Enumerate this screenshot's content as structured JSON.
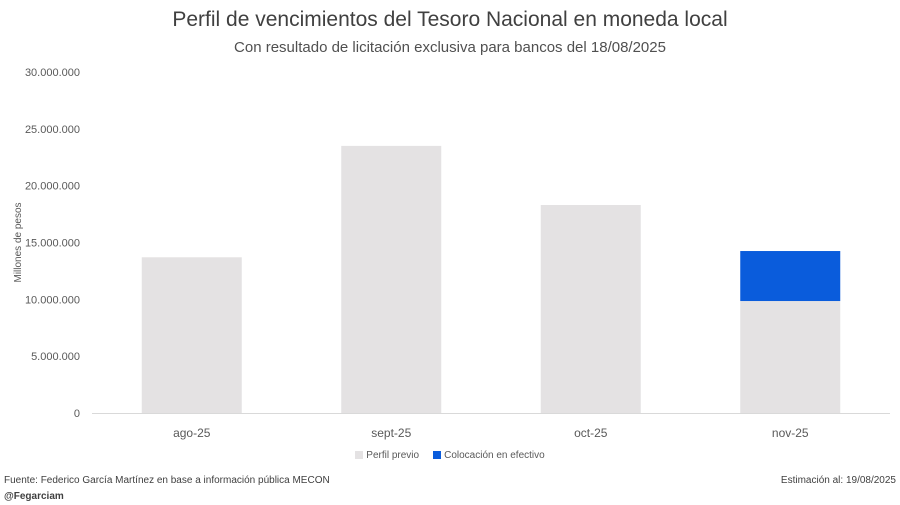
{
  "chart_data": {
    "type": "bar",
    "stacked": true,
    "title": "Perfil de vencimientos del Tesoro Nacional en moneda local",
    "subtitle": "Con resultado de licitación exclusiva para bancos del 18/08/2025",
    "ylabel": "Millones de pesos",
    "xlabel": "",
    "ylim": [
      0,
      30000000
    ],
    "yticks": [
      0,
      5000000,
      10000000,
      15000000,
      20000000,
      25000000,
      30000000
    ],
    "ytick_labels": [
      "0",
      "5.000.000",
      "10.000.000",
      "15.000.000",
      "20.000.000",
      "25.000.000",
      "30.000.000"
    ],
    "categories": [
      "ago-25",
      "sept-25",
      "oct-25",
      "nov-25"
    ],
    "series": [
      {
        "name": "Perfil previo",
        "color": "#e4e2e3",
        "values": [
          13700000,
          23500000,
          18300000,
          9850000
        ]
      },
      {
        "name": "Colocación en efectivo",
        "color": "#0a5cdc",
        "values": [
          0,
          0,
          0,
          4400000
        ]
      }
    ],
    "grid": false,
    "legend": "bottom"
  },
  "footer": {
    "source": "Fuente: Federico García Martínez en base a información pública MECON",
    "handle": "@Fegarciam",
    "estimate": "Estimación al: 19/08/2025"
  }
}
